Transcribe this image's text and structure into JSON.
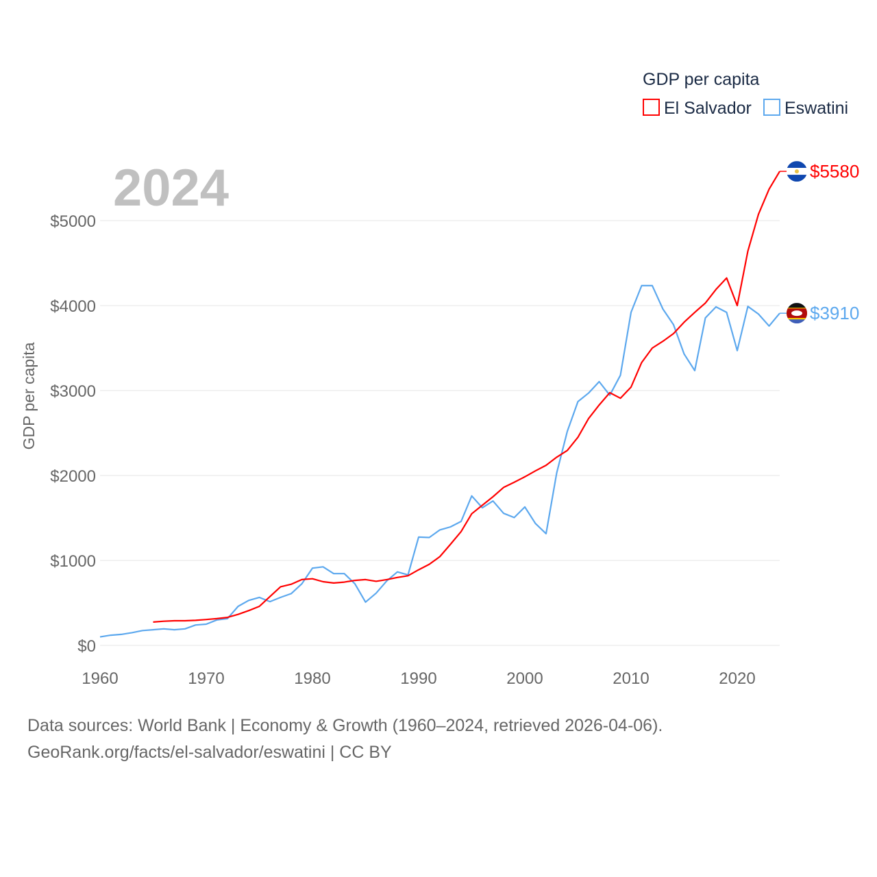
{
  "chart_data": {
    "type": "line",
    "title": "GDP per capita",
    "year_label": "2024",
    "ylabel": "GDP per capita",
    "xlabel": "",
    "xlim": [
      1960,
      2024
    ],
    "ylim": [
      0,
      5800
    ],
    "x_ticks": [
      1960,
      1970,
      1980,
      1990,
      2000,
      2010,
      2020
    ],
    "x_tick_labels": [
      "1960",
      "1970",
      "1980",
      "1990",
      "2000",
      "2010",
      "2020"
    ],
    "y_ticks": [
      0,
      1000,
      2000,
      3000,
      4000,
      5000
    ],
    "y_tick_labels": [
      "$0",
      "$1000",
      "$2000",
      "$3000",
      "$4000",
      "$5000"
    ],
    "grid": true,
    "legend_position": "top-right",
    "series": [
      {
        "name": "El Salvador",
        "color": "#ff0000",
        "end_label": "$5580",
        "start_year": 1965,
        "values": [
          275,
          285,
          290,
          290,
          295,
          305,
          315,
          330,
          365,
          410,
          460,
          575,
          690,
          720,
          775,
          785,
          750,
          735,
          745,
          765,
          775,
          755,
          775,
          800,
          820,
          890,
          955,
          1045,
          1190,
          1340,
          1550,
          1650,
          1750,
          1860,
          1920,
          1985,
          2055,
          2120,
          2215,
          2295,
          2450,
          2670,
          2830,
          2975,
          2910,
          3040,
          3330,
          3500,
          3580,
          3670,
          3805,
          3920,
          4030,
          4190,
          4325,
          4000,
          4640,
          5075,
          5370,
          5580
        ]
      },
      {
        "name": "Eswatini",
        "color": "#5ca8ee",
        "end_label": "$3910",
        "start_year": 1960,
        "values": [
          100,
          120,
          130,
          150,
          175,
          185,
          195,
          185,
          195,
          240,
          250,
          300,
          315,
          460,
          530,
          565,
          515,
          565,
          610,
          725,
          910,
          925,
          845,
          845,
          725,
          510,
          615,
          760,
          865,
          830,
          1275,
          1270,
          1360,
          1395,
          1460,
          1760,
          1620,
          1700,
          1555,
          1505,
          1630,
          1435,
          1315,
          2030,
          2520,
          2870,
          2970,
          3105,
          2945,
          3180,
          3920,
          4235,
          4235,
          3960,
          3775,
          3430,
          3235,
          3855,
          3985,
          3920,
          3470,
          3990,
          3900,
          3760,
          3910
        ]
      }
    ]
  },
  "footer": {
    "line1": "Data sources: World Bank | Economy & Growth (1960–2024, retrieved 2026-04-06).",
    "line2": "GeoRank.org/facts/el-salvador/eswatini | CC BY"
  }
}
